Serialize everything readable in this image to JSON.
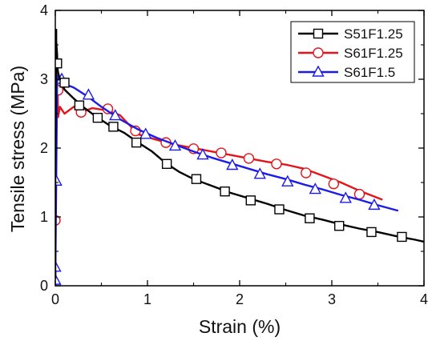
{
  "chart_data": {
    "type": "line",
    "xlabel": "Strain (%)",
    "ylabel": "Tensile stress (MPa)",
    "xlim": [
      0,
      4
    ],
    "ylim": [
      0,
      4
    ],
    "x_ticks": [
      "0",
      "1",
      "2",
      "3",
      "4"
    ],
    "y_ticks": [
      "0",
      "1",
      "2",
      "3",
      "4"
    ],
    "grid": false,
    "legend_position": "top-right",
    "series": [
      {
        "name": "S51F1.25",
        "color": "#000000",
        "marker": "square",
        "x": [
          0.0,
          0.0,
          0.01,
          0.01,
          0.02,
          0.02,
          0.03,
          0.05,
          0.1,
          0.2,
          0.3,
          0.45,
          0.6,
          0.75,
          0.9,
          1.05,
          1.2,
          1.35,
          1.5,
          1.7,
          1.9,
          2.1,
          2.3,
          2.5,
          2.7,
          2.9,
          3.1,
          3.3,
          3.5,
          3.7,
          3.9,
          4.0
        ],
        "y": [
          0.1,
          1.45,
          3.72,
          3.55,
          3.35,
          3.2,
          3.1,
          3.0,
          2.85,
          2.72,
          2.6,
          2.45,
          2.32,
          2.22,
          2.08,
          1.95,
          1.78,
          1.65,
          1.55,
          1.45,
          1.35,
          1.27,
          1.19,
          1.1,
          1.02,
          0.96,
          0.89,
          0.83,
          0.78,
          0.72,
          0.67,
          0.64
        ],
        "marker_x": [
          0.02,
          0.1,
          0.26,
          0.46,
          0.63,
          0.88,
          1.21,
          1.53,
          1.84,
          2.12,
          2.43,
          2.76,
          3.08,
          3.43,
          3.76
        ],
        "marker_y": [
          3.23,
          2.95,
          2.62,
          2.44,
          2.31,
          2.08,
          1.77,
          1.55,
          1.37,
          1.24,
          1.11,
          0.98,
          0.87,
          0.78,
          0.71
        ]
      },
      {
        "name": "S61F1.25",
        "color": "#e3141b",
        "marker": "circle",
        "x": [
          0.0,
          0.0,
          0.01,
          0.02,
          0.03,
          0.05,
          0.1,
          0.2,
          0.3,
          0.4,
          0.55,
          0.7,
          0.9,
          1.1,
          1.3,
          1.5,
          1.7,
          1.9,
          2.1,
          2.3,
          2.5,
          2.7,
          2.9,
          3.1,
          3.3,
          3.55
        ],
        "y": [
          0.0,
          0.95,
          2.9,
          3.12,
          2.45,
          2.6,
          2.5,
          2.6,
          2.53,
          2.58,
          2.55,
          2.48,
          2.2,
          2.12,
          2.05,
          2.0,
          1.95,
          1.9,
          1.85,
          1.8,
          1.76,
          1.7,
          1.6,
          1.5,
          1.38,
          1.25
        ],
        "marker_x": [
          0.0,
          0.03,
          0.28,
          0.57,
          0.87,
          1.2,
          1.5,
          1.8,
          2.1,
          2.4,
          2.72,
          3.02,
          3.3
        ],
        "marker_y": [
          0.95,
          2.84,
          2.52,
          2.57,
          2.25,
          2.08,
          1.99,
          1.93,
          1.85,
          1.77,
          1.64,
          1.48,
          1.33
        ]
      },
      {
        "name": "S61F1.5",
        "color": "#1c1ce8",
        "marker": "triangle",
        "x": [
          0.0,
          0.01,
          0.02,
          0.03,
          0.05,
          0.1,
          0.2,
          0.35,
          0.5,
          0.7,
          0.9,
          1.1,
          1.3,
          1.5,
          1.7,
          1.9,
          2.1,
          2.3,
          2.5,
          2.7,
          2.9,
          3.1,
          3.3,
          3.5,
          3.72
        ],
        "y": [
          0.1,
          1.55,
          3.05,
          3.0,
          2.95,
          2.93,
          2.88,
          2.75,
          2.6,
          2.42,
          2.27,
          2.15,
          2.05,
          1.95,
          1.86,
          1.78,
          1.7,
          1.62,
          1.55,
          1.47,
          1.4,
          1.32,
          1.25,
          1.17,
          1.09
        ],
        "marker_x": [
          0.0,
          0.0,
          0.01,
          0.07,
          0.36,
          0.65,
          0.98,
          1.3,
          1.6,
          1.92,
          2.22,
          2.52,
          2.82,
          3.15,
          3.46
        ],
        "marker_y": [
          0.08,
          0.27,
          1.52,
          3.0,
          2.77,
          2.47,
          2.2,
          2.03,
          1.9,
          1.75,
          1.62,
          1.51,
          1.4,
          1.27,
          1.17
        ]
      }
    ]
  }
}
